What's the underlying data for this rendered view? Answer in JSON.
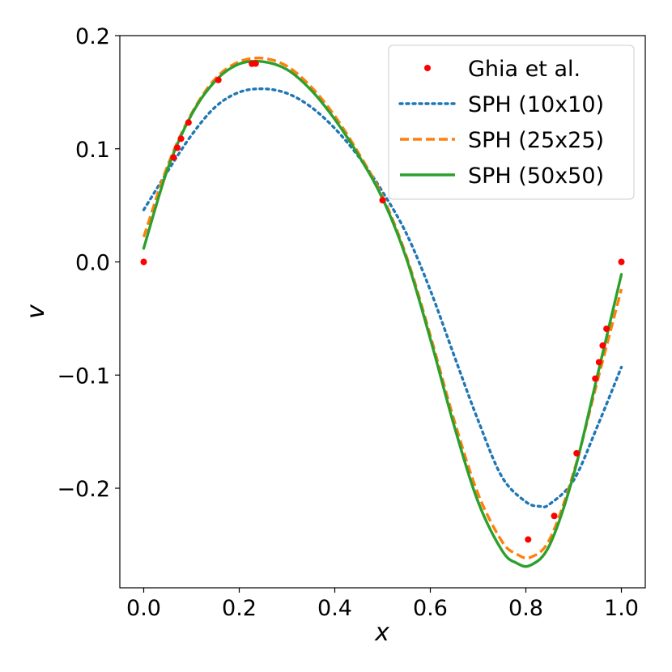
{
  "chart_data": {
    "type": "line",
    "xlabel": "x",
    "ylabel": "v",
    "xlim": [
      -0.05,
      1.05
    ],
    "ylim": [
      -0.288,
      0.2
    ],
    "xticks": [
      0.0,
      0.2,
      0.4,
      0.6,
      0.8,
      1.0
    ],
    "xtick_labels": [
      "0.0",
      "0.2",
      "0.4",
      "0.6",
      "0.8",
      "1.0"
    ],
    "yticks": [
      0.2,
      0.1,
      0.0,
      -0.1,
      -0.2
    ],
    "ytick_labels": [
      "0.2",
      "0.1",
      "0.0",
      "−0.1",
      "−0.2"
    ],
    "grid": false,
    "legend_position": "top-right",
    "reference": {
      "name": "Ghia et al.",
      "color": "#ff0000",
      "x": [
        0.0,
        0.0625,
        0.0703,
        0.0781,
        0.0938,
        0.1563,
        0.2266,
        0.2344,
        0.5,
        0.8047,
        0.8594,
        0.9063,
        0.9453,
        0.9531,
        0.9609,
        0.9688,
        1.0
      ],
      "y": [
        0.0,
        0.0923,
        0.1009,
        0.1089,
        0.1232,
        0.1608,
        0.1751,
        0.1753,
        0.0545,
        -0.2453,
        -0.2245,
        -0.1691,
        -0.1031,
        -0.0886,
        -0.0739,
        -0.0591,
        0.0
      ]
    },
    "series": [
      {
        "name": "SPH (10x10)",
        "color": "#1f77b4",
        "style": "dotted",
        "x": [
          0.0,
          0.05,
          0.1,
          0.15,
          0.2,
          0.25,
          0.3,
          0.35,
          0.4,
          0.45,
          0.5,
          0.55,
          0.6,
          0.65,
          0.7,
          0.75,
          0.8,
          0.83,
          0.85,
          0.9,
          0.95,
          1.0
        ],
        "y": [
          0.046,
          0.08,
          0.112,
          0.137,
          0.15,
          0.153,
          0.149,
          0.137,
          0.118,
          0.093,
          0.062,
          0.025,
          -0.025,
          -0.083,
          -0.14,
          -0.19,
          -0.212,
          -0.216,
          -0.214,
          -0.193,
          -0.145,
          -0.093
        ]
      },
      {
        "name": "SPH (25x25)",
        "color": "#ff7f0e",
        "style": "dashed",
        "x": [
          0.0,
          0.05,
          0.1,
          0.15,
          0.2,
          0.25,
          0.3,
          0.35,
          0.4,
          0.45,
          0.5,
          0.55,
          0.6,
          0.65,
          0.7,
          0.75,
          0.78,
          0.81,
          0.85,
          0.9,
          0.95,
          1.0
        ],
        "y": [
          0.022,
          0.085,
          0.131,
          0.162,
          0.177,
          0.18,
          0.173,
          0.155,
          0.129,
          0.096,
          0.058,
          0.005,
          -0.065,
          -0.14,
          -0.205,
          -0.247,
          -0.258,
          -0.261,
          -0.245,
          -0.186,
          -0.105,
          -0.024
        ]
      },
      {
        "name": "SPH (50x50)",
        "color": "#2ca02c",
        "style": "solid",
        "x": [
          0.0,
          0.05,
          0.1,
          0.15,
          0.2,
          0.25,
          0.3,
          0.35,
          0.4,
          0.45,
          0.5,
          0.55,
          0.6,
          0.65,
          0.7,
          0.75,
          0.78,
          0.81,
          0.85,
          0.9,
          0.95,
          1.0
        ],
        "y": [
          0.012,
          0.082,
          0.13,
          0.16,
          0.175,
          0.177,
          0.17,
          0.152,
          0.126,
          0.094,
          0.056,
          0.003,
          -0.068,
          -0.145,
          -0.212,
          -0.255,
          -0.266,
          -0.268,
          -0.25,
          -0.188,
          -0.1,
          -0.011
        ]
      }
    ]
  }
}
